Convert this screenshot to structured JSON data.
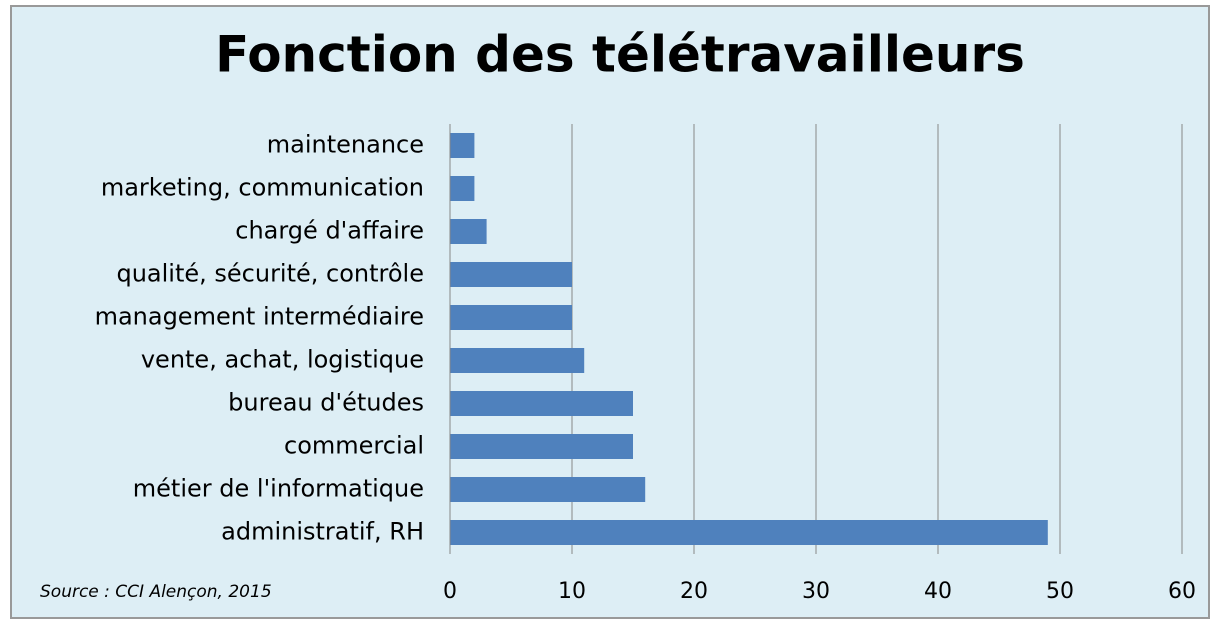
{
  "chart_data": {
    "type": "barh",
    "title": "Fonction des télétravailleurs",
    "categories": [
      "maintenance",
      "marketing, communication",
      "chargé d'affaire",
      "qualité, sécurité, contrôle",
      "management intermédiaire",
      "vente, achat, logistique",
      "bureau d'études",
      "commercial",
      "métier de l'informatique",
      "administratif, RH"
    ],
    "values": [
      2,
      2,
      3,
      10,
      10,
      11,
      15,
      15,
      16,
      49
    ],
    "color": "#4f81bd",
    "xlim": [
      0,
      60
    ],
    "xticks": [
      0,
      10,
      20,
      30,
      40,
      50,
      60
    ],
    "grid": true,
    "annotation": "Source : CCI Alençon, 2015"
  }
}
